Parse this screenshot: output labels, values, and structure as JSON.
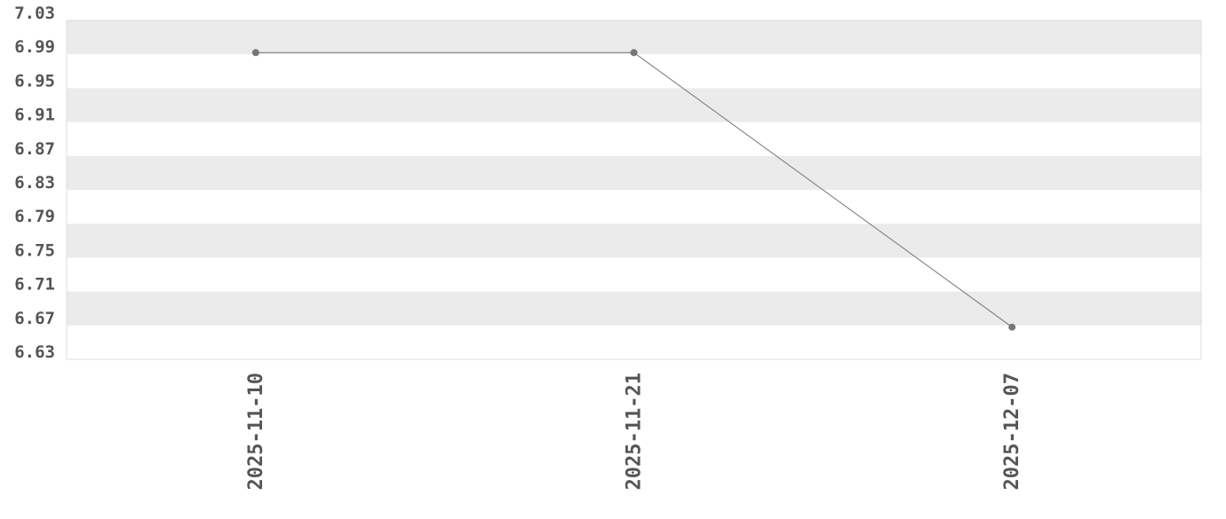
{
  "chart_data": {
    "type": "line",
    "title": "",
    "xlabel": "",
    "ylabel": "",
    "categories": [
      "2025-11-10",
      "2025-11-21",
      "2025-12-07"
    ],
    "series": [
      {
        "values": [
          6.992,
          6.992,
          6.668
        ]
      }
    ],
    "ylim": [
      6.63,
      7.03
    ],
    "yticks": [
      "7.03",
      "6.99",
      "6.95",
      "6.91",
      "6.87",
      "6.83",
      "6.79",
      "6.75",
      "6.71",
      "6.67",
      "6.63"
    ],
    "grid": "alternating horizontal bands",
    "colors": {
      "line": "#777777",
      "point": "#777777",
      "band": "#ebebeb",
      "border": "#dddddd",
      "text": "#555555"
    }
  }
}
